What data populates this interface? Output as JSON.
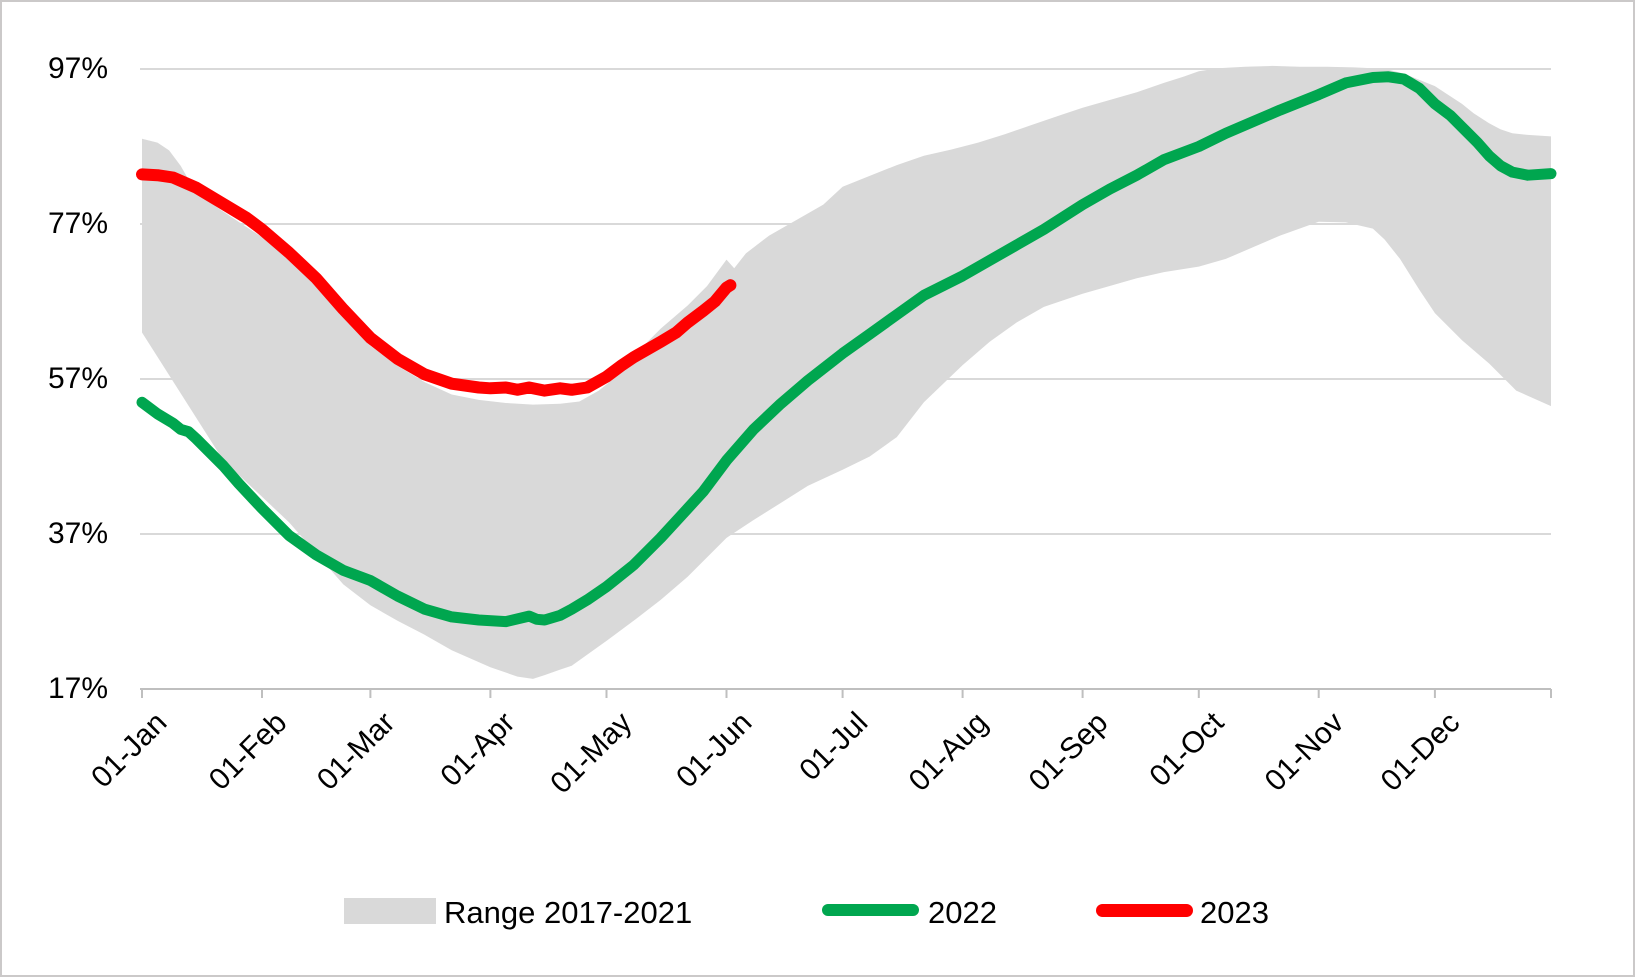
{
  "colors": {
    "band": "#D9D9D9",
    "gridline": "#D9D9D9",
    "axis": "#BFBFBF",
    "tick": "#BFBFBF",
    "green_2022": "#00A64F",
    "red_2023": "#FF0000",
    "text": "#000000",
    "frame_border": "#CBC9C9"
  },
  "legend": {
    "items": [
      {
        "label": "Range 2017-2021",
        "swatch": "band"
      },
      {
        "label": "2022",
        "swatch": "line-green"
      },
      {
        "label": "2023",
        "swatch": "line-red"
      }
    ]
  },
  "chart_data": {
    "type": "area",
    "title": "",
    "xlabel": "",
    "ylabel": "",
    "ylim": [
      17,
      97
    ],
    "grid": "horizontal",
    "legend_position": "bottom",
    "x_unit": "day_of_year",
    "y_ticks": [
      97,
      77,
      57,
      37,
      17
    ],
    "y_tick_labels": [
      "97%",
      "77%",
      "57%",
      "37%",
      "17%"
    ],
    "y_grid_values": [
      97,
      77,
      57,
      37
    ],
    "month_tick_days": [
      0,
      31,
      59,
      90,
      120,
      151,
      181,
      212,
      243,
      273,
      304,
      334,
      364
    ],
    "x_tick_labels": [
      "01-Jan",
      "01-Feb",
      "01-Mar",
      "01-Apr",
      "01-May",
      "01-Jun",
      "01-Jul",
      "01-Aug",
      "01-Sep",
      "01-Oct",
      "01-Nov",
      "01-Dec"
    ],
    "series": [
      {
        "name": "Range 2017-2021",
        "type": "band",
        "color": "#D9D9D9",
        "upper": [
          [
            0,
            88
          ],
          [
            4,
            87.5
          ],
          [
            7,
            86.5
          ],
          [
            10,
            84.5
          ],
          [
            14,
            81
          ],
          [
            21,
            78.6
          ],
          [
            31,
            75.3
          ],
          [
            38,
            72.3
          ],
          [
            45,
            69
          ],
          [
            52,
            65
          ],
          [
            59,
            61.3
          ],
          [
            66,
            58.7
          ],
          [
            73,
            56.6
          ],
          [
            80,
            55
          ],
          [
            87,
            54.3
          ],
          [
            94,
            53.9
          ],
          [
            101,
            53.7
          ],
          [
            108,
            53.8
          ],
          [
            113,
            54.1
          ],
          [
            118,
            55.5
          ],
          [
            123,
            57.5
          ],
          [
            127,
            60
          ],
          [
            134,
            63.5
          ],
          [
            141,
            66.5
          ],
          [
            146,
            69
          ],
          [
            151,
            72.4
          ],
          [
            153,
            71.3
          ],
          [
            156,
            73.2
          ],
          [
            162,
            75.5
          ],
          [
            169,
            77.5
          ],
          [
            176,
            79.5
          ],
          [
            181,
            81.8
          ],
          [
            188,
            83.2
          ],
          [
            195,
            84.6
          ],
          [
            202,
            85.8
          ],
          [
            209,
            86.6
          ],
          [
            216,
            87.5
          ],
          [
            223,
            88.6
          ],
          [
            230,
            89.8
          ],
          [
            237,
            91
          ],
          [
            243,
            92
          ],
          [
            250,
            93
          ],
          [
            257,
            94
          ],
          [
            264,
            95.2
          ],
          [
            269,
            96
          ],
          [
            273,
            96.7
          ],
          [
            278,
            97.1
          ],
          [
            285,
            97.3
          ],
          [
            292,
            97.4
          ],
          [
            299,
            97.3
          ],
          [
            306,
            97.3
          ],
          [
            313,
            97.2
          ],
          [
            318,
            97.1
          ],
          [
            322,
            96.9
          ],
          [
            326,
            96.4
          ],
          [
            330,
            95.6
          ],
          [
            334,
            94.8
          ],
          [
            337,
            93.8
          ],
          [
            341,
            92.5
          ],
          [
            344,
            91.3
          ],
          [
            348,
            90
          ],
          [
            351,
            89.2
          ],
          [
            354,
            88.7
          ],
          [
            358,
            88.5
          ],
          [
            364,
            88.3
          ]
        ],
        "lower": [
          [
            0,
            63
          ],
          [
            7,
            57.5
          ],
          [
            14,
            52
          ],
          [
            21,
            46.5
          ],
          [
            31,
            41.8
          ],
          [
            38,
            38.5
          ],
          [
            45,
            34.5
          ],
          [
            52,
            30.5
          ],
          [
            59,
            27.8
          ],
          [
            66,
            25.8
          ],
          [
            73,
            24
          ],
          [
            80,
            22
          ],
          [
            90,
            19.8
          ],
          [
            97,
            18.6
          ],
          [
            101,
            18.3
          ],
          [
            104,
            18.8
          ],
          [
            108,
            19.5
          ],
          [
            111,
            20
          ],
          [
            118,
            22.5
          ],
          [
            120,
            23.2
          ],
          [
            127,
            25.8
          ],
          [
            134,
            28.5
          ],
          [
            141,
            31.5
          ],
          [
            151,
            36.5
          ],
          [
            158,
            38.8
          ],
          [
            165,
            41
          ],
          [
            172,
            43.2
          ],
          [
            181,
            45.3
          ],
          [
            188,
            47
          ],
          [
            195,
            49.5
          ],
          [
            202,
            54
          ],
          [
            212,
            58.8
          ],
          [
            219,
            61.8
          ],
          [
            226,
            64.3
          ],
          [
            233,
            66.3
          ],
          [
            243,
            68
          ],
          [
            250,
            69
          ],
          [
            257,
            70
          ],
          [
            264,
            70.8
          ],
          [
            273,
            71.5
          ],
          [
            280,
            72.5
          ],
          [
            287,
            74
          ],
          [
            294,
            75.5
          ],
          [
            304,
            77.3
          ],
          [
            311,
            77.2
          ],
          [
            318,
            76.4
          ],
          [
            321,
            75
          ],
          [
            325,
            72.5
          ],
          [
            330,
            68.5
          ],
          [
            334,
            65.5
          ],
          [
            341,
            62
          ],
          [
            348,
            59
          ],
          [
            355,
            55.5
          ],
          [
            364,
            53.5
          ]
        ]
      },
      {
        "name": "2022",
        "type": "line",
        "color": "#00A64F",
        "stroke_width": 11,
        "points": [
          [
            0,
            54
          ],
          [
            4,
            52.5
          ],
          [
            8,
            51.3
          ],
          [
            10,
            50.5
          ],
          [
            12,
            50.2
          ],
          [
            14,
            49.3
          ],
          [
            17,
            47.8
          ],
          [
            21,
            45.8
          ],
          [
            25,
            43.5
          ],
          [
            31,
            40.3
          ],
          [
            38,
            36.8
          ],
          [
            45,
            34.3
          ],
          [
            52,
            32.3
          ],
          [
            59,
            31
          ],
          [
            66,
            29
          ],
          [
            73,
            27.3
          ],
          [
            80,
            26.3
          ],
          [
            87,
            25.9
          ],
          [
            94,
            25.7
          ],
          [
            100,
            26.4
          ],
          [
            102,
            26
          ],
          [
            104,
            25.9
          ],
          [
            108,
            26.5
          ],
          [
            111,
            27.3
          ],
          [
            115,
            28.5
          ],
          [
            120,
            30.2
          ],
          [
            127,
            33
          ],
          [
            134,
            36.5
          ],
          [
            141,
            40.3
          ],
          [
            145,
            42.5
          ],
          [
            151,
            46.5
          ],
          [
            158,
            50.5
          ],
          [
            165,
            53.8
          ],
          [
            172,
            56.8
          ],
          [
            181,
            60.3
          ],
          [
            188,
            62.8
          ],
          [
            195,
            65.3
          ],
          [
            202,
            67.8
          ],
          [
            212,
            70.3
          ],
          [
            219,
            72.3
          ],
          [
            226,
            74.3
          ],
          [
            233,
            76.3
          ],
          [
            243,
            79.5
          ],
          [
            250,
            81.5
          ],
          [
            257,
            83.3
          ],
          [
            264,
            85.3
          ],
          [
            273,
            87
          ],
          [
            280,
            88.7
          ],
          [
            287,
            90.2
          ],
          [
            294,
            91.7
          ],
          [
            304,
            93.7
          ],
          [
            311,
            95.2
          ],
          [
            318,
            95.9
          ],
          [
            322,
            96
          ],
          [
            326,
            95.7
          ],
          [
            330,
            94.5
          ],
          [
            334,
            92.5
          ],
          [
            338,
            91
          ],
          [
            341,
            89.5
          ],
          [
            345,
            87.5
          ],
          [
            348,
            85.8
          ],
          [
            351,
            84.5
          ],
          [
            354,
            83.7
          ],
          [
            358,
            83.3
          ],
          [
            364,
            83.5
          ]
        ]
      },
      {
        "name": "2023",
        "type": "line",
        "color": "#FF0000",
        "stroke_width": 12,
        "points": [
          [
            0,
            83.4
          ],
          [
            4,
            83.3
          ],
          [
            8,
            83
          ],
          [
            14,
            81.7
          ],
          [
            21,
            79.6
          ],
          [
            27,
            77.8
          ],
          [
            31,
            76.3
          ],
          [
            38,
            73.3
          ],
          [
            45,
            70
          ],
          [
            52,
            66
          ],
          [
            59,
            62.3
          ],
          [
            66,
            59.6
          ],
          [
            73,
            57.6
          ],
          [
            80,
            56.4
          ],
          [
            87,
            55.9
          ],
          [
            90,
            55.8
          ],
          [
            94,
            55.9
          ],
          [
            97,
            55.6
          ],
          [
            100,
            55.9
          ],
          [
            104,
            55.5
          ],
          [
            108,
            55.8
          ],
          [
            111,
            55.6
          ],
          [
            115,
            55.9
          ],
          [
            120,
            57.3
          ],
          [
            124,
            58.8
          ],
          [
            127,
            59.8
          ],
          [
            134,
            61.8
          ],
          [
            138,
            63
          ],
          [
            141,
            64.3
          ],
          [
            145,
            65.8
          ],
          [
            148,
            67
          ],
          [
            151,
            68.8
          ],
          [
            152,
            69.1
          ]
        ]
      }
    ]
  }
}
